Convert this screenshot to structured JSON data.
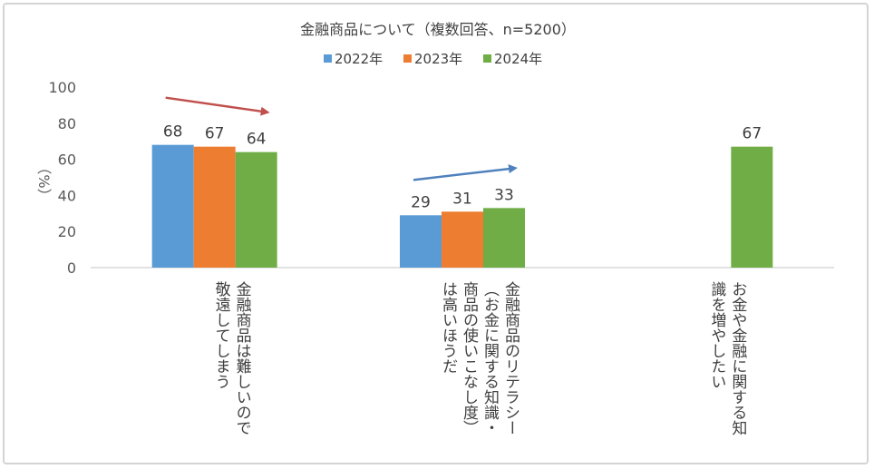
{
  "chart_data": {
    "type": "bar",
    "title": "金融商品について（複数回答、n=5200）",
    "ylabel": "（%）",
    "ylim": [
      0,
      100
    ],
    "yticks": [
      0,
      20,
      40,
      60,
      80,
      100
    ],
    "legend_position": "top",
    "grid": false,
    "categories": [
      "金融商品は難しいので敬遠してしまう",
      "金融商品のリテラシー（お金に関する知識・商品の使いこなし度）は高いほうだ",
      "お金や金融に関する知識を増やしたい"
    ],
    "series": [
      {
        "name": "2022年",
        "color": "#5b9bd5",
        "values": [
          68,
          29,
          null
        ]
      },
      {
        "name": "2023年",
        "color": "#ed7d31",
        "values": [
          67,
          31,
          null
        ]
      },
      {
        "name": "2024年",
        "color": "#70ad47",
        "values": [
          64,
          33,
          67
        ]
      }
    ],
    "annotations": [
      {
        "type": "arrow",
        "direction": "down",
        "color": "#c0504d",
        "category_index": 0
      },
      {
        "type": "arrow",
        "direction": "up",
        "color": "#4f81bd",
        "category_index": 1
      }
    ]
  }
}
